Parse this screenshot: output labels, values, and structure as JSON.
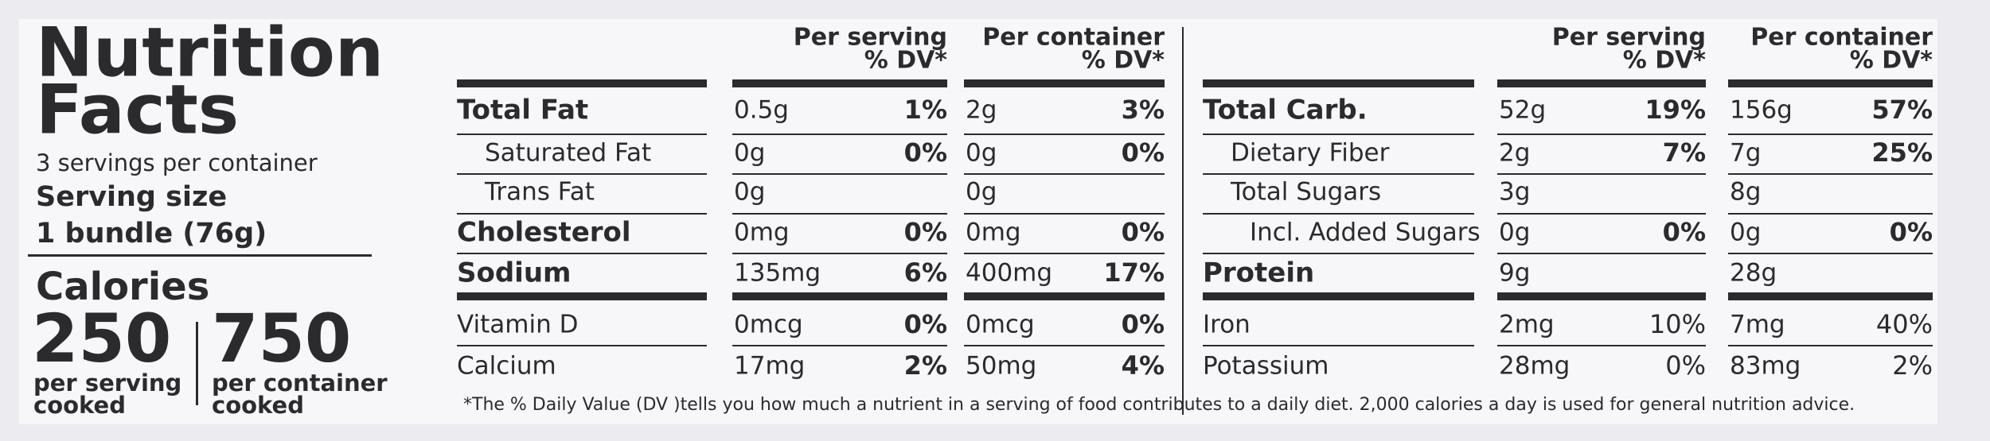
{
  "header": {
    "title_line1": "Nutrition",
    "title_line2": "Facts",
    "servings": "3 servings per container",
    "serving_size_label": "Serving size",
    "serving_size": "1 bundle (76g)",
    "calories_label": "Calories",
    "calories": [
      {
        "amount": "250",
        "label_line1": "per serving",
        "label_line2": "cooked"
      },
      {
        "amount": "750",
        "label_line1": "per container",
        "label_line2": "cooked"
      }
    ]
  },
  "panels": [
    {
      "serving_header": [
        "Per serving",
        "% DV*"
      ],
      "container_header": [
        "Per container",
        "% DV*"
      ],
      "rows": [
        {
          "name": "Total Fat",
          "serving": "0.5g",
          "serving_dv": "1%",
          "container": "2g",
          "container_dv": "3%"
        },
        {
          "name": "Saturated Fat",
          "serving": "0g",
          "serving_dv": "0%",
          "container": "0g",
          "container_dv": "0%"
        },
        {
          "name": "Trans Fat",
          "serving": "0g",
          "container": "0g"
        },
        {
          "name": "Cholesterol",
          "serving": "0mg",
          "serving_dv": "0%",
          "container": "0mg",
          "container_dv": "0%"
        },
        {
          "name": "Sodium",
          "serving": "135mg",
          "serving_dv": "6%",
          "container": "400mg",
          "container_dv": "17%"
        },
        {
          "name": "Vitamin D",
          "serving": "0mcg",
          "serving_dv": "0%",
          "container": "0mcg",
          "container_dv": "0%"
        },
        {
          "name": "Calcium",
          "serving": "17mg",
          "serving_dv": "2%",
          "container": "50mg",
          "container_dv": "4%"
        }
      ]
    },
    {
      "serving_header": [
        "Per serving",
        "% DV*"
      ],
      "container_header": [
        "Per container",
        "% DV*"
      ],
      "rows": [
        {
          "name": "Total Carb.",
          "serving": "52g",
          "serving_dv": "19%",
          "container": "156g",
          "container_dv": "57%"
        },
        {
          "name": "Dietary Fiber",
          "serving": "2g",
          "serving_dv": "7%",
          "container": "7g",
          "container_dv": "25%"
        },
        {
          "name": "Total Sugars",
          "serving": "3g",
          "container": "8g"
        },
        {
          "name": "Incl. Added Sugars",
          "serving": "0g",
          "serving_dv": "0%",
          "container": "0g",
          "container_dv": "0%"
        },
        {
          "name": "Protein",
          "serving": "9g",
          "container": "28g"
        },
        {
          "name": "Iron",
          "serving": "2mg",
          "serving_dv": "10%",
          "container": "7mg",
          "container_dv": "40%"
        },
        {
          "name": "Potassium",
          "serving": "28mg",
          "serving_dv": "0%",
          "container": "83mg",
          "container_dv": "2%"
        }
      ]
    }
  ],
  "footnote": "*The % Daily Value (DV )tells you how much a nutrient in a serving of food contributes to a daily diet. 2,000 calories a day is used for general nutrition advice."
}
